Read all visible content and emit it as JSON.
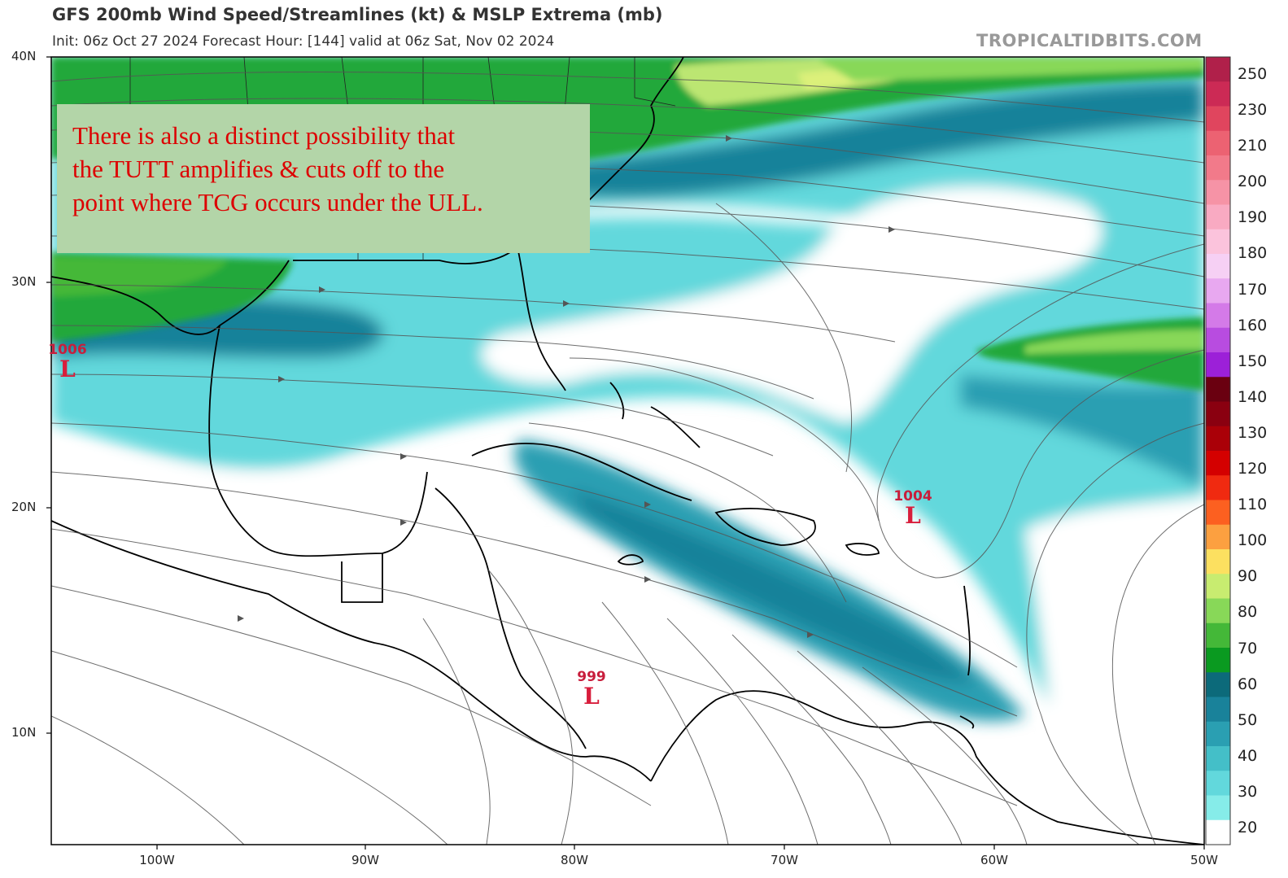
{
  "header": {
    "title": "GFS 200mb Wind Speed/Streamlines (kt) & MSLP Extrema (mb)",
    "subtitle": "Init: 06z Oct 27 2024   Forecast Hour: [144]   valid at 06z Sat, Nov 02 2024",
    "brand": "TROPICALTIDBITS.COM"
  },
  "annotation": {
    "lines": [
      "There is also a distinct possibility that",
      "the TUTT amplifies & cuts off to the",
      "point where TCG occurs under the ULL."
    ]
  },
  "axes": {
    "latitudes": [
      "40N",
      "30N",
      "20N",
      "10N"
    ],
    "longitudes": [
      "100W",
      "90W",
      "80W",
      "70W",
      "60W",
      "50W"
    ]
  },
  "colorbar": {
    "labels": [
      "250",
      "230",
      "210",
      "200",
      "190",
      "180",
      "170",
      "160",
      "150",
      "140",
      "130",
      "120",
      "110",
      "100",
      "90",
      "80",
      "70",
      "60",
      "50",
      "40",
      "30",
      "20"
    ],
    "colors": [
      "#b0204a",
      "#cc2a55",
      "#e0455e",
      "#ec6272",
      "#f27a8a",
      "#f693a6",
      "#f9aac2",
      "#fbc3dc",
      "#f6d0f4",
      "#e8a8f0",
      "#d47ae8",
      "#b84ce0",
      "#9c20d8",
      "#6a0010",
      "#8a0010",
      "#aa0008",
      "#d40000",
      "#f02a10",
      "#fc6020",
      "#fca040",
      "#fce060",
      "#c8ec70",
      "#88d858",
      "#44b838",
      "#0a9a20",
      "#0c6a7a",
      "#19829a",
      "#2a9fb2",
      "#44bfc8",
      "#62d8dc",
      "#86ece9",
      "#ffffff"
    ]
  },
  "lows": [
    {
      "pressure": "1006",
      "symbol": "L"
    },
    {
      "pressure": "1004",
      "symbol": "L"
    },
    {
      "pressure": "999",
      "symbol": "L"
    }
  ],
  "palette": {
    "jet_green": "#1fa83a",
    "jet_light": "#bce672",
    "cyan_dark": "#127f93",
    "cyan_mid": "#36b8cb",
    "cyan_light": "#7ae3ea",
    "land_line": "#000000",
    "low_red": "#d81e3c"
  }
}
